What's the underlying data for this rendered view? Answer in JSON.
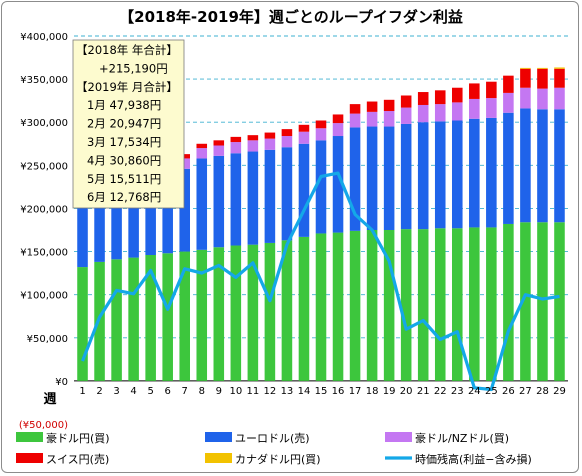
{
  "chart_data": {
    "type": "bar",
    "title": "【2018年-2019年】週ごとのループイフダン利益",
    "xlabel": "週",
    "ylabel": "",
    "ylim": [
      -50000,
      400000
    ],
    "yticks": [
      {
        "value": 400000,
        "label": "¥400,000"
      },
      {
        "value": 350000,
        "label": "¥350,000"
      },
      {
        "value": 300000,
        "label": "¥300,000"
      },
      {
        "value": 250000,
        "label": "¥250,000"
      },
      {
        "value": 200000,
        "label": "¥200,000"
      },
      {
        "value": 150000,
        "label": "¥150,000"
      },
      {
        "value": 100000,
        "label": "¥100,000"
      },
      {
        "value": 50000,
        "label": "¥50,000"
      },
      {
        "value": 0,
        "label": "¥0"
      },
      {
        "value": -50000,
        "label": "(¥50,000)"
      }
    ],
    "grid": true,
    "stacked": true,
    "legend_position": "bottom",
    "categories": [
      "1",
      "2",
      "3",
      "4",
      "5",
      "6",
      "7",
      "8",
      "9",
      "10",
      "11",
      "12",
      "13",
      "14",
      "15",
      "16",
      "17",
      "18",
      "19",
      "20",
      "21",
      "22",
      "23",
      "24",
      "25",
      "26",
      "27",
      "28",
      "29"
    ],
    "series": [
      {
        "name": "豪ドル円(買)",
        "color": "#3dc63d",
        "values": [
          132000,
          138000,
          141000,
          143000,
          146000,
          148000,
          150000,
          152000,
          155000,
          157000,
          158000,
          160000,
          163000,
          167000,
          171000,
          172000,
          174000,
          175000,
          175000,
          176000,
          176000,
          177000,
          177000,
          178000,
          178000,
          182000,
          184000,
          184000,
          184000
        ]
      },
      {
        "name": "ユーロドル(売)",
        "color": "#1f63ea",
        "values": [
          75000,
          78000,
          80000,
          83000,
          87000,
          90000,
          96000,
          106000,
          106000,
          107000,
          108000,
          108000,
          108000,
          108000,
          108000,
          112000,
          120000,
          120000,
          120000,
          122000,
          124000,
          124000,
          125000,
          126000,
          127000,
          129000,
          132000,
          131000,
          131000
        ]
      },
      {
        "name": "豪ドル/NZドル(買)",
        "color": "#c477f2",
        "values": [
          12000,
          12000,
          12000,
          12000,
          12000,
          12000,
          12000,
          12000,
          12000,
          13000,
          13000,
          13000,
          13000,
          14000,
          14000,
          15000,
          16000,
          17000,
          18000,
          19000,
          20000,
          20000,
          21000,
          23000,
          23000,
          23000,
          24000,
          24000,
          25000
        ]
      },
      {
        "name": "スイス円(売)",
        "color": "#ee0000",
        "values": [
          4000,
          4000,
          4000,
          4000,
          4000,
          5000,
          5000,
          5000,
          6000,
          6000,
          6000,
          7000,
          8000,
          8000,
          9000,
          10000,
          11000,
          12000,
          13000,
          14000,
          15000,
          16000,
          17000,
          18000,
          19000,
          20000,
          22000,
          23000,
          22000
        ]
      },
      {
        "name": "カナダドル円(買)",
        "color": "#f2c200",
        "values": [
          0,
          0,
          0,
          0,
          0,
          0,
          0,
          0,
          0,
          0,
          0,
          0,
          0,
          0,
          0,
          0,
          0,
          0,
          0,
          0,
          0,
          0,
          0,
          0,
          0,
          0,
          1000,
          1000,
          1500
        ]
      }
    ],
    "line_series": {
      "name": "時価残高(利益−含み損)",
      "color": "#14a8e8",
      "values": [
        23000,
        74000,
        105000,
        101000,
        128000,
        83000,
        130000,
        125000,
        134000,
        120000,
        137000,
        93000,
        158000,
        198000,
        237000,
        241000,
        193000,
        175000,
        139000,
        60000,
        70000,
        48000,
        57000,
        -8000,
        -10000,
        58000,
        100000,
        95000,
        98000
      ]
    },
    "annotation": {
      "lines": [
        "【2018年 年合計】",
        "+215,190円",
        "【2019年 月合計】",
        "1月 47,938円",
        "2月 20,947円",
        "3月 17,534円",
        "4月 30,860円",
        "5月 15,511円",
        "6月 12,768円"
      ]
    }
  }
}
